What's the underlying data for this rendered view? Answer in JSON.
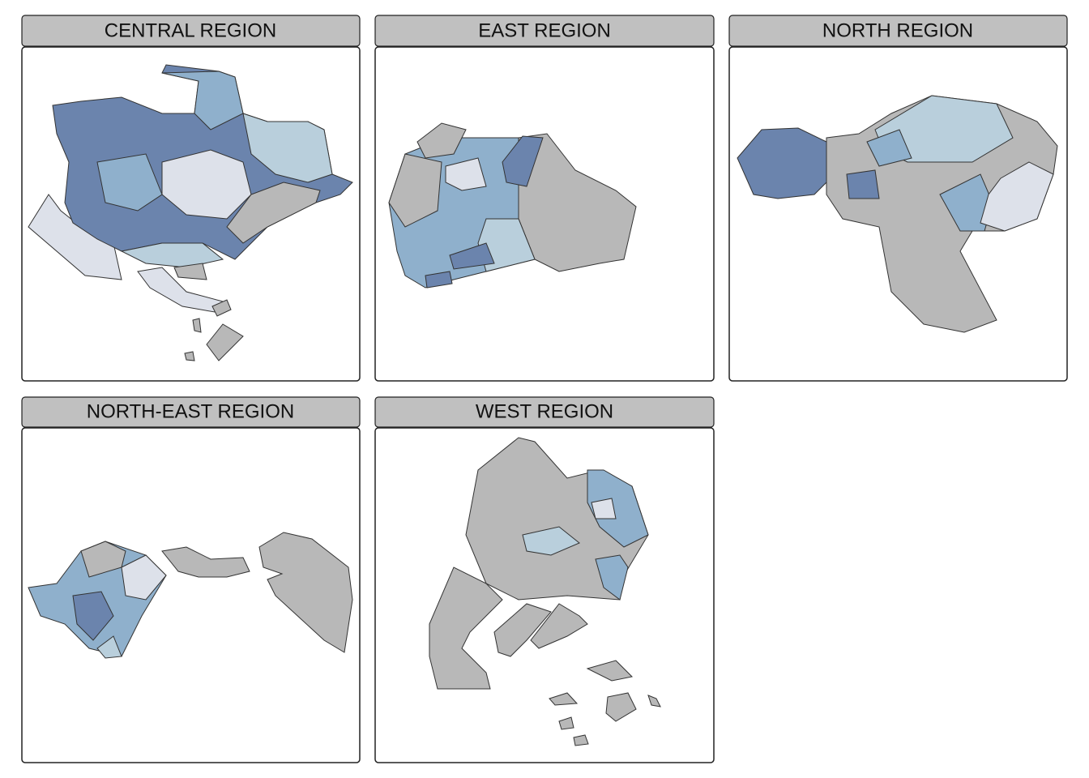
{
  "panels": [
    {
      "title": "CENTRAL REGION"
    },
    {
      "title": "EAST REGION"
    },
    {
      "title": "NORTH REGION"
    },
    {
      "title": "NORTH-EAST REGION"
    },
    {
      "title": "WEST REGION"
    }
  ]
}
